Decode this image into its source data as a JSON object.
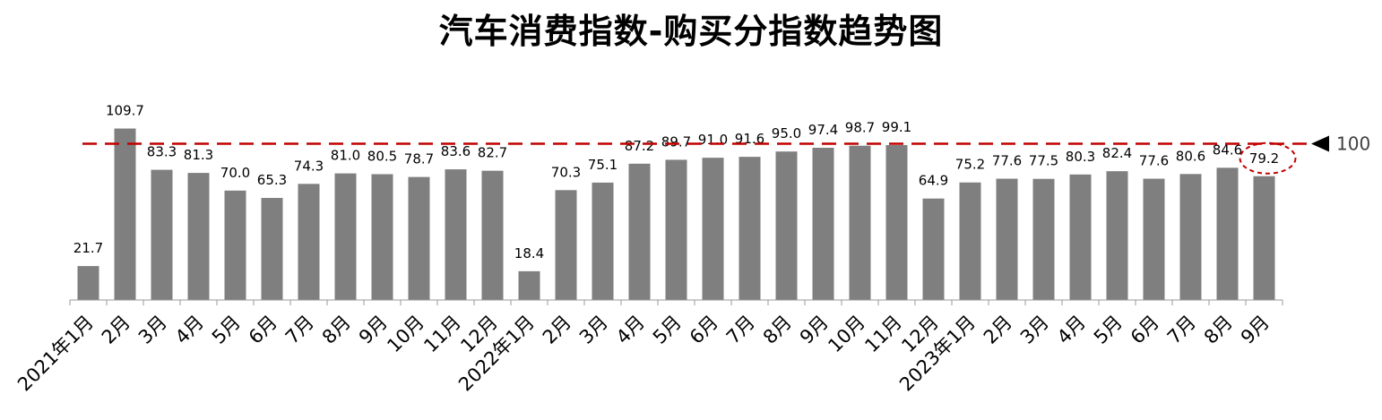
{
  "chart_data": {
    "type": "bar",
    "title": "汽车消费指数-购买分指数趋势图",
    "categories": [
      "2021年1月",
      "2月",
      "3月",
      "4月",
      "5月",
      "6月",
      "7月",
      "8月",
      "9月",
      "10月",
      "11月",
      "12月",
      "2022年1月",
      "2月",
      "3月",
      "4月",
      "5月",
      "6月",
      "7月",
      "8月",
      "9月",
      "10月",
      "11月",
      "12月",
      "2023年1月",
      "2月",
      "3月",
      "4月",
      "5月",
      "6月",
      "7月",
      "8月",
      "9月"
    ],
    "values": [
      21.7,
      109.7,
      83.3,
      81.3,
      70.0,
      65.3,
      74.3,
      81.0,
      80.5,
      78.7,
      83.6,
      82.7,
      18.4,
      70.3,
      75.1,
      87.2,
      89.7,
      91.0,
      91.6,
      95.0,
      97.4,
      98.7,
      99.1,
      64.9,
      75.2,
      77.6,
      77.5,
      80.3,
      82.4,
      77.6,
      80.6,
      84.6,
      79.2
    ],
    "value_labels": [
      "21.7",
      "109.7",
      "83.3",
      "81.3",
      "70.0",
      "65.3",
      "74.3",
      "81.0",
      "80.5",
      "78.7",
      "83.6",
      "82.7",
      "18.4",
      "70.3",
      "75.1",
      "87.2",
      "89.7",
      "91.0",
      "91.6",
      "95.0",
      "97.4",
      "98.7",
      "99.1",
      "64.9",
      "75.2",
      "77.6",
      "77.5",
      "80.3",
      "82.4",
      "77.6",
      "80.6",
      "84.6",
      "79.2"
    ],
    "reference_line": {
      "value": 100,
      "label": "100",
      "color": "#c00000"
    },
    "highlight_last": true,
    "bar_color": "#7f7f7f",
    "ylim": [
      0,
      110
    ],
    "grid": false,
    "legend": "none"
  }
}
